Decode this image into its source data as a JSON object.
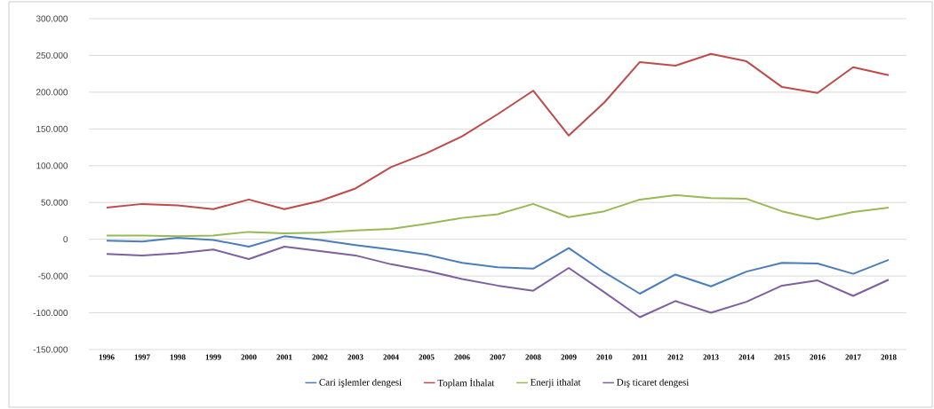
{
  "chart_data": {
    "type": "line",
    "categories": [
      "1996",
      "1997",
      "1998",
      "1999",
      "2000",
      "2001",
      "2002",
      "2003",
      "2004",
      "2005",
      "2006",
      "2007",
      "2008",
      "2009",
      "2010",
      "2011",
      "2012",
      "2013",
      "2014",
      "2015",
      "2016",
      "2017",
      "2018"
    ],
    "series": [
      {
        "name": "Cari işlemler dengesi",
        "color": "#4a7ebb",
        "values": [
          -2000,
          -3000,
          2000,
          -1000,
          -10000,
          4000,
          -1000,
          -8000,
          -14000,
          -21000,
          -32000,
          -38000,
          -40000,
          -12000,
          -45000,
          -74000,
          -48000,
          -64000,
          -44000,
          -32000,
          -33000,
          -47000,
          -28000
        ]
      },
      {
        "name": "Toplam İthalat",
        "color": "#be4b48",
        "values": [
          43000,
          48000,
          46000,
          41000,
          54000,
          41000,
          52000,
          69000,
          98000,
          117000,
          140000,
          170000,
          202000,
          141000,
          186000,
          241000,
          236000,
          252000,
          242000,
          207000,
          199000,
          234000,
          223000
        ]
      },
      {
        "name": "Enerji  ithalat",
        "color": "#98b954",
        "values": [
          5000,
          5000,
          4000,
          5000,
          10000,
          8000,
          9000,
          12000,
          14000,
          21000,
          29000,
          34000,
          48000,
          30000,
          38000,
          54000,
          60000,
          56000,
          55000,
          38000,
          27000,
          37000,
          43000
        ]
      },
      {
        "name": "Dış ticaret dengesi",
        "color": "#7d60a0",
        "values": [
          -20000,
          -22000,
          -19000,
          -14000,
          -27000,
          -10000,
          -16000,
          -22000,
          -34000,
          -43000,
          -54000,
          -63000,
          -70000,
          -39000,
          -72000,
          -106000,
          -84000,
          -100000,
          -85000,
          -63000,
          -56000,
          -77000,
          -55000
        ]
      }
    ],
    "ylim": [
      -150000,
      300000
    ],
    "yticks": [
      {
        "value": -150000,
        "label": "-150.000"
      },
      {
        "value": -100000,
        "label": "-100.000"
      },
      {
        "value": -50000,
        "label": "-50.000"
      },
      {
        "value": 0,
        "label": "0"
      },
      {
        "value": 50000,
        "label": "50.000"
      },
      {
        "value": 100000,
        "label": "100.000"
      },
      {
        "value": 150000,
        "label": "150.000"
      },
      {
        "value": 200000,
        "label": "200.000"
      },
      {
        "value": 250000,
        "label": "250.000"
      },
      {
        "value": 300000,
        "label": "300.000"
      }
    ],
    "grid": "y",
    "legend": "bottom"
  }
}
